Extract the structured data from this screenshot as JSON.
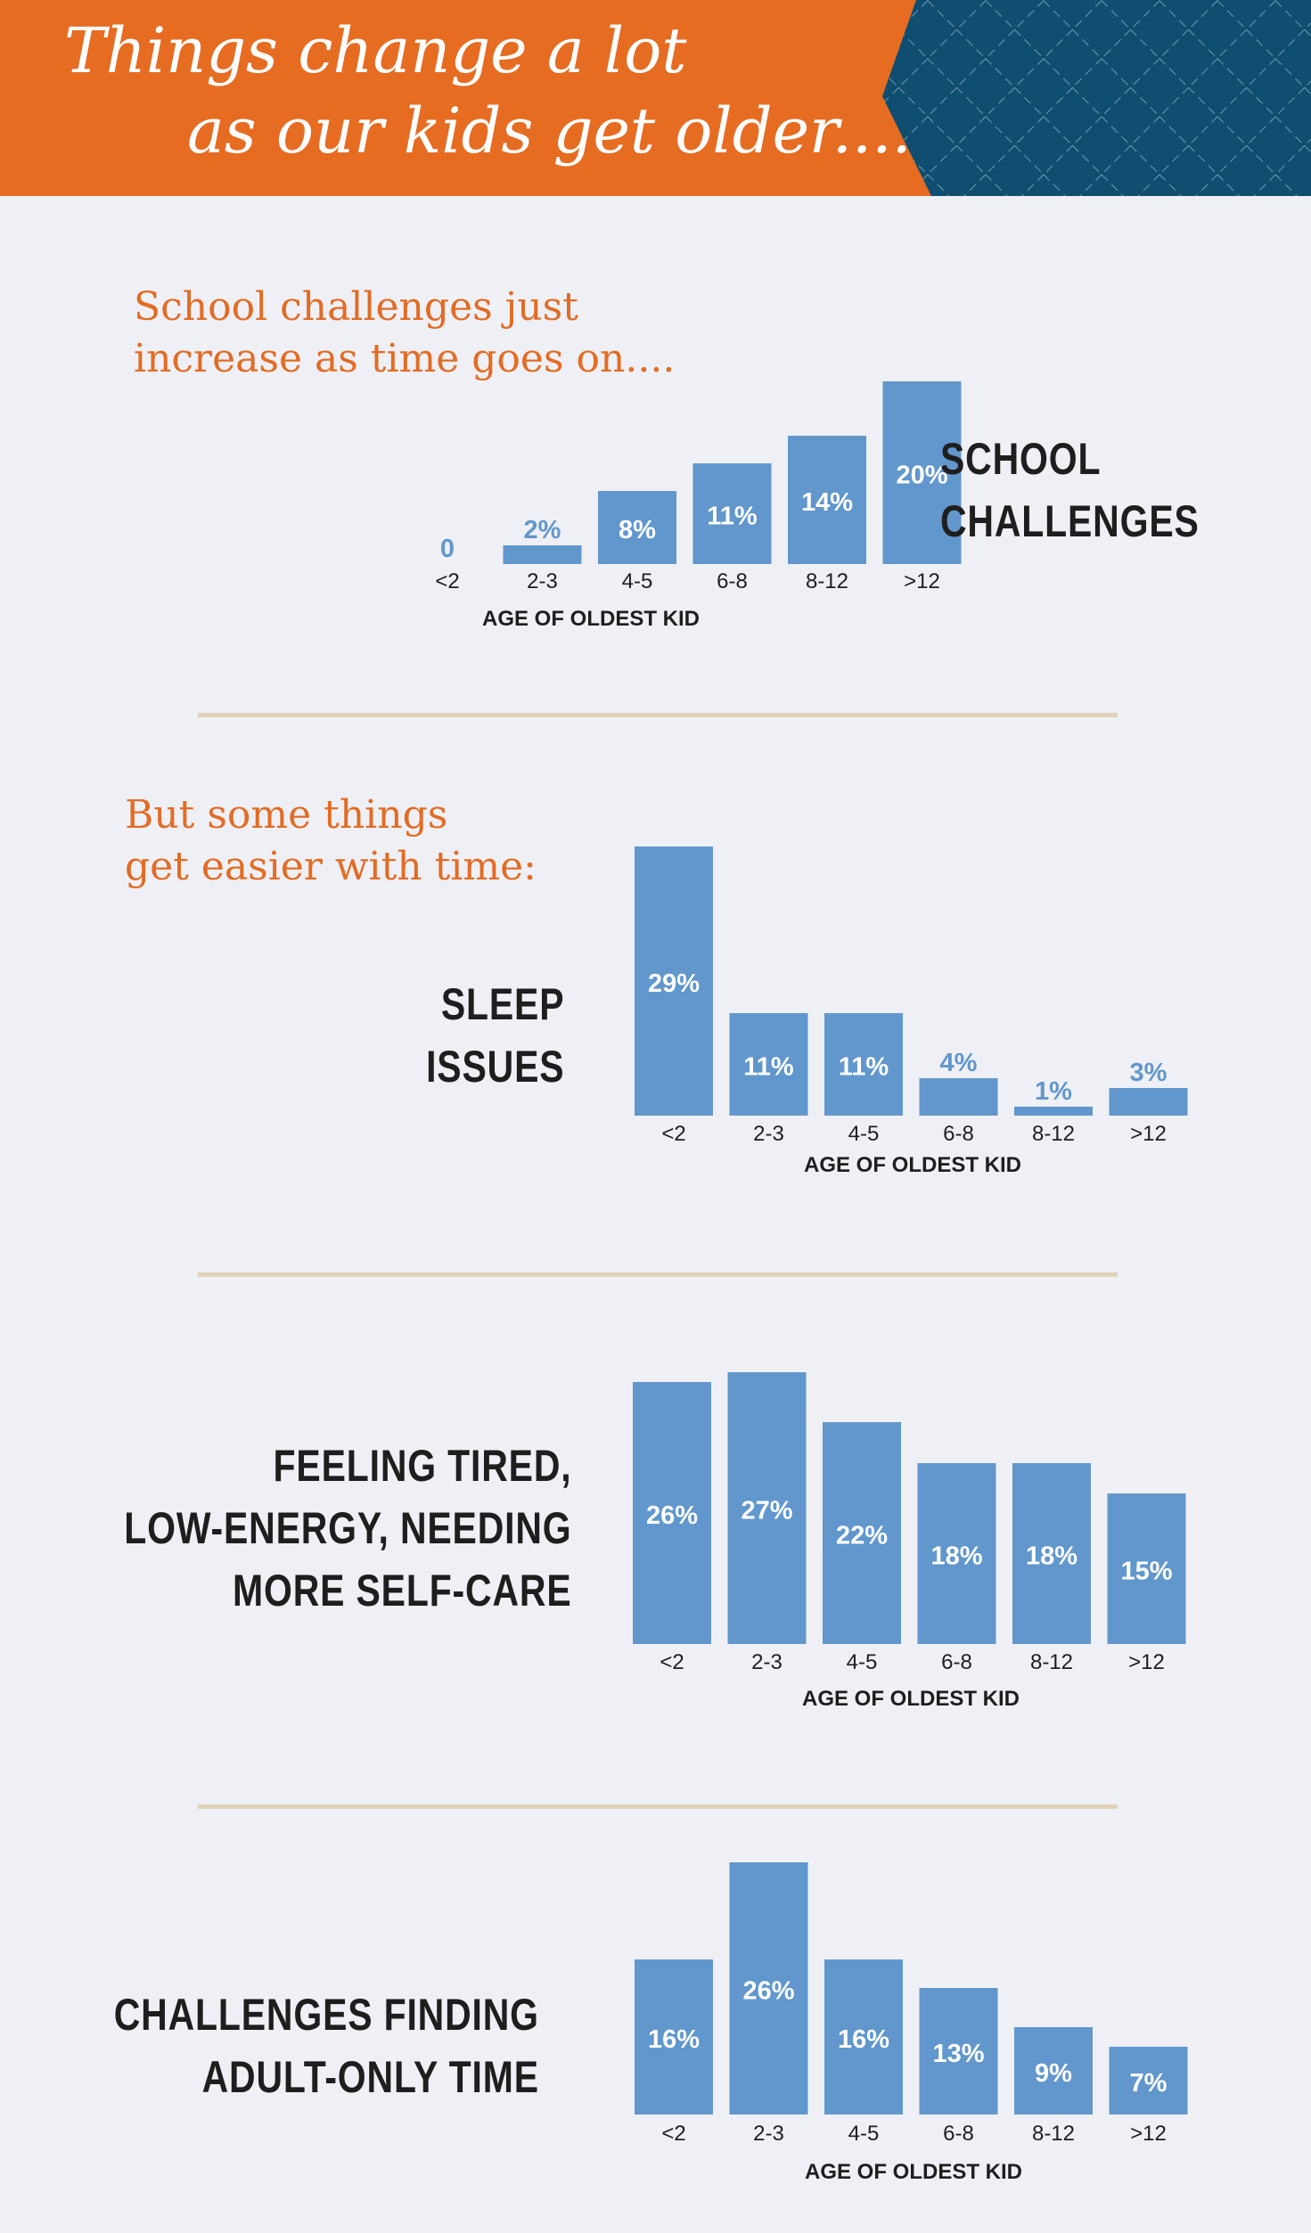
{
  "header": {
    "title_line1": "Things change a lot",
    "title_line2": "as our kids get older....",
    "colors": {
      "banner": "#e66c22",
      "pattern_bg": "#0f4e70",
      "pattern_line": "#6f9ab3"
    }
  },
  "sections": {
    "school": {
      "subtitle_line1": "School challenges just",
      "subtitle_line2": "increase as time goes on....",
      "label_line1": "SCHOOL",
      "label_line2": "CHALLENGES"
    },
    "sleep": {
      "subtitle_line1": "But some things",
      "subtitle_line2": "get easier with time:",
      "label_line1": "SLEEP",
      "label_line2": "ISSUES"
    },
    "tired": {
      "label_line1": "FEELING TIRED,",
      "label_line2": "LOW-ENERGY, NEEDING",
      "label_line3": "MORE SELF-CARE"
    },
    "adult": {
      "label_line1": "CHALLENGES FINDING",
      "label_line2": "ADULT-ONLY TIME"
    }
  },
  "colors": {
    "bar": "#6197cc",
    "bar_text": "#ffffff",
    "small_text": "#6197cc",
    "axis_text": "#1e1e1e",
    "divider": "#dfd2b8"
  },
  "chart_data": [
    {
      "type": "bar",
      "title": "SCHOOL CHALLENGES",
      "xlabel": "AGE OF OLDEST KID",
      "categories": [
        "<2",
        "2-3",
        "4-5",
        "6-8",
        "8-12",
        ">12"
      ],
      "values": [
        0,
        2,
        8,
        11,
        14,
        20
      ],
      "value_labels": [
        "0",
        "2%",
        "8%",
        "11%",
        "14%",
        "20%"
      ],
      "ylim": [
        0,
        20
      ]
    },
    {
      "type": "bar",
      "title": "SLEEP ISSUES",
      "xlabel": "AGE OF OLDEST KID",
      "categories": [
        "<2",
        "2-3",
        "4-5",
        "6-8",
        "8-12",
        ">12"
      ],
      "values": [
        29,
        11,
        11,
        4,
        1,
        3
      ],
      "value_labels": [
        "29%",
        "11%",
        "11%",
        "4%",
        "1%",
        "3%"
      ],
      "ylim": [
        0,
        29
      ]
    },
    {
      "type": "bar",
      "title": "FEELING TIRED, LOW-ENERGY, NEEDING MORE SELF-CARE",
      "xlabel": "AGE OF OLDEST KID",
      "categories": [
        "<2",
        "2-3",
        "4-5",
        "6-8",
        "8-12",
        ">12"
      ],
      "values": [
        26,
        27,
        22,
        18,
        18,
        15
      ],
      "value_labels": [
        "26%",
        "27%",
        "22%",
        "18%",
        "18%",
        "15%"
      ],
      "ylim": [
        0,
        27
      ]
    },
    {
      "type": "bar",
      "title": "CHALLENGES FINDING ADULT-ONLY TIME",
      "xlabel": "AGE OF OLDEST KID",
      "categories": [
        "<2",
        "2-3",
        "4-5",
        "6-8",
        "8-12",
        ">12"
      ],
      "values": [
        16,
        26,
        16,
        13,
        9,
        7
      ],
      "value_labels": [
        "16%",
        "26%",
        "16%",
        "13%",
        "9%",
        "7%"
      ],
      "ylim": [
        0,
        26
      ]
    }
  ]
}
